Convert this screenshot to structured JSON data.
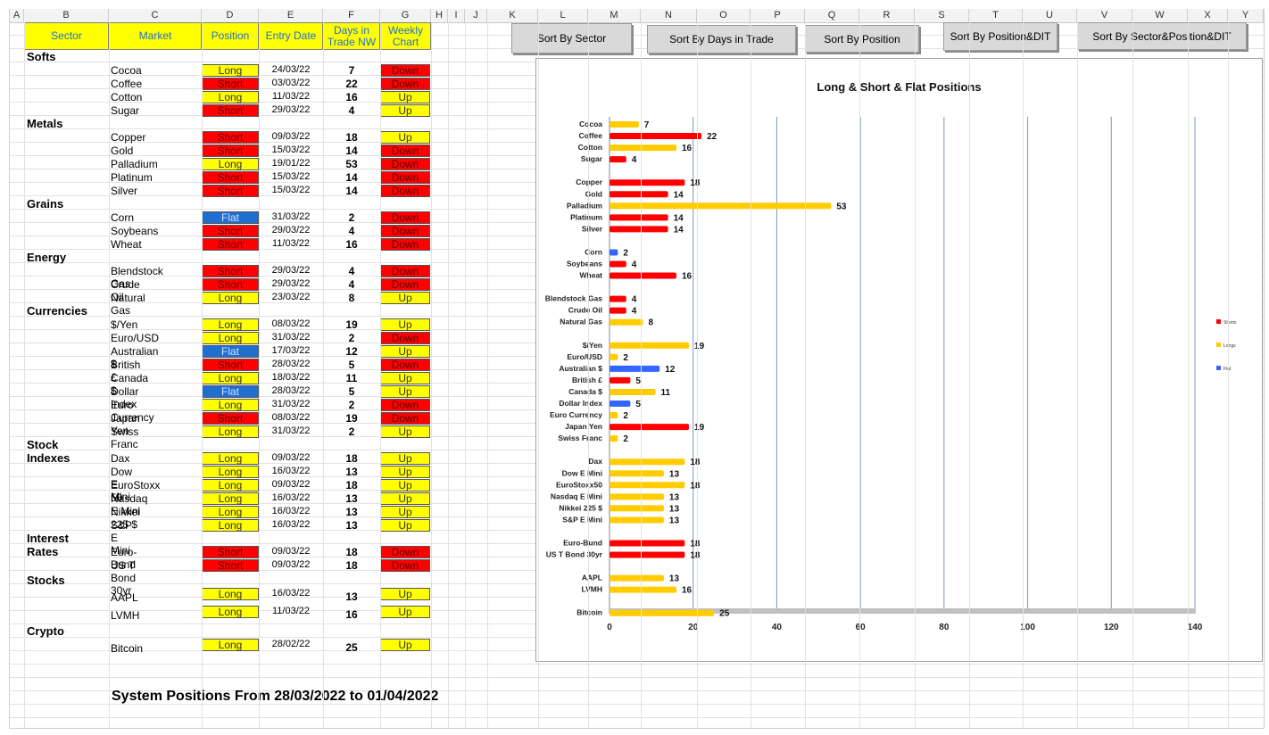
{
  "columns": [
    "A",
    "B",
    "C",
    "D",
    "E",
    "F",
    "G",
    "H",
    "I",
    "J",
    "K",
    "L",
    "M",
    "N",
    "O",
    "P",
    "Q",
    "R",
    "S",
    "T",
    "U",
    "V",
    "W",
    "X",
    "Y"
  ],
  "table_headers": {
    "sector": "Sector",
    "market": "Market",
    "position": "Position",
    "entry_date": "Entry Date",
    "days": "Days in Trade NW",
    "weekly": "Weekly Chart"
  },
  "buttons": {
    "sort_sector": "Sort By Sector",
    "sort_days": "Sort By Days in Trade",
    "sort_position": "Sort By Position",
    "sort_position_dit": "Sort By Position&DIT",
    "sort_sector_position_dit": "Sort By Sector&Position&DIT"
  },
  "sectors": [
    {
      "name": "Softs",
      "rows": [
        {
          "market": "Cocoa",
          "position": "Long",
          "entry": "24/03/22",
          "days": "7",
          "weekly": "Down"
        },
        {
          "market": "Coffee",
          "position": "Short",
          "entry": "03/03/22",
          "days": "22",
          "weekly": "Down"
        },
        {
          "market": "Cotton",
          "position": "Long",
          "entry": "11/03/22",
          "days": "16",
          "weekly": "Up"
        },
        {
          "market": "Sugar",
          "position": "Short",
          "entry": "29/03/22",
          "days": "4",
          "weekly": "Up"
        }
      ]
    },
    {
      "name": "Metals",
      "rows": [
        {
          "market": "Copper",
          "position": "Short",
          "entry": "09/03/22",
          "days": "18",
          "weekly": "Up"
        },
        {
          "market": "Gold",
          "position": "Short",
          "entry": "15/03/22",
          "days": "14",
          "weekly": "Down"
        },
        {
          "market": "Palladium",
          "position": "Long",
          "entry": "19/01/22",
          "days": "53",
          "weekly": "Down"
        },
        {
          "market": "Platinum",
          "position": "Short",
          "entry": "15/03/22",
          "days": "14",
          "weekly": "Down"
        },
        {
          "market": "Silver",
          "position": "Short",
          "entry": "15/03/22",
          "days": "14",
          "weekly": "Down"
        }
      ]
    },
    {
      "name": "Grains",
      "rows": [
        {
          "market": "Corn",
          "position": "Flat",
          "entry": "31/03/22",
          "days": "2",
          "weekly": "Down"
        },
        {
          "market": "Soybeans",
          "position": "Short",
          "entry": "29/03/22",
          "days": "4",
          "weekly": "Down"
        },
        {
          "market": "Wheat",
          "position": "Short",
          "entry": "11/03/22",
          "days": "16",
          "weekly": "Down"
        }
      ]
    },
    {
      "name": "Energy",
      "rows": [
        {
          "market": "Blendstock Gas",
          "position": "Short",
          "entry": "29/03/22",
          "days": "4",
          "weekly": "Down"
        },
        {
          "market": "Crude Oil",
          "position": "Short",
          "entry": "29/03/22",
          "days": "4",
          "weekly": "Down"
        },
        {
          "market": "Natural Gas",
          "position": "Long",
          "entry": "23/03/22",
          "days": "8",
          "weekly": "Up"
        }
      ]
    },
    {
      "name": "Currencies",
      "rows": [
        {
          "market": "$/Yen",
          "position": "Long",
          "entry": "08/03/22",
          "days": "19",
          "weekly": "Up"
        },
        {
          "market": "Euro/USD",
          "position": "Long",
          "entry": "31/03/22",
          "days": "2",
          "weekly": "Down"
        },
        {
          "market": "Australian $",
          "position": "Flat",
          "entry": "17/03/22",
          "days": "12",
          "weekly": "Up"
        },
        {
          "market": "British £",
          "position": "Short",
          "entry": "28/03/22",
          "days": "5",
          "weekly": "Down"
        },
        {
          "market": "Canada $",
          "position": "Long",
          "entry": "18/03/22",
          "days": "11",
          "weekly": "Up"
        },
        {
          "market": "Dollar Index",
          "position": "Flat",
          "entry": "28/03/22",
          "days": "5",
          "weekly": "Up"
        },
        {
          "market": "Euro Currency",
          "position": "Long",
          "entry": "31/03/22",
          "days": "2",
          "weekly": "Down"
        },
        {
          "market": "Japan Yen",
          "position": "Short",
          "entry": "08/03/22",
          "days": "19",
          "weekly": "Down"
        },
        {
          "market": "Swiss Franc",
          "position": "Long",
          "entry": "31/03/22",
          "days": "2",
          "weekly": "Up"
        }
      ]
    },
    {
      "name": "Stock Indexes",
      "rows": [
        {
          "market": "Dax",
          "position": "Long",
          "entry": "09/03/22",
          "days": "18",
          "weekly": "Up"
        },
        {
          "market": "Dow E Mini",
          "position": "Long",
          "entry": "16/03/22",
          "days": "13",
          "weekly": "Up"
        },
        {
          "market": "EuroStoxx 50",
          "position": "Long",
          "entry": "09/03/22",
          "days": "18",
          "weekly": "Up"
        },
        {
          "market": "Nasdaq E Mini",
          "position": "Long",
          "entry": "16/03/22",
          "days": "13",
          "weekly": "Up"
        },
        {
          "market": "Nikkei 225 $",
          "position": "Long",
          "entry": "16/03/22",
          "days": "13",
          "weekly": "Up"
        },
        {
          "market": "S&P E Mini",
          "position": "Long",
          "entry": "16/03/22",
          "days": "13",
          "weekly": "Up"
        }
      ]
    },
    {
      "name": "Interest Rates",
      "rows": [
        {
          "market": "Euro-Bund",
          "position": "Short",
          "entry": "09/03/22",
          "days": "18",
          "weekly": "Down"
        },
        {
          "market": "US T Bond 30yr",
          "position": "Short",
          "entry": "09/03/22",
          "days": "18",
          "weekly": "Down"
        }
      ]
    },
    {
      "name": "Stocks",
      "rows": [
        {
          "market": "AAPL",
          "position": "Long",
          "entry": "16/03/22",
          "days": "13",
          "weekly": "Up"
        },
        {
          "market": "LVMH",
          "position": "Long",
          "entry": "11/03/22",
          "days": "16",
          "weekly": "Up"
        }
      ]
    },
    {
      "name": "Crypto",
      "rows": [
        {
          "market": "Bitcoin",
          "position": "Long",
          "entry": "28/02/22",
          "days": "25",
          "weekly": "Up"
        }
      ]
    }
  ],
  "footer": "System Positions From  28/03/2022  to 01/04/2022",
  "colors": {
    "short": "#ff0000",
    "long": "#ffcc00",
    "flat": "#3366ff",
    "header_yellow": "#ffff00",
    "header_text": "#1f6fd1"
  },
  "chart_data": {
    "type": "bar",
    "orientation": "horizontal",
    "title": "Long & Short & Flat Positions",
    "xlim": [
      0,
      140
    ],
    "xticks": [
      0,
      20,
      40,
      60,
      80,
      100,
      120,
      140
    ],
    "legend": [
      "Shorts",
      "Longs",
      "Flat"
    ],
    "legend_position": "right",
    "groups": [
      [
        [
          "Cocoa",
          7,
          "Long"
        ],
        [
          "Coffee",
          22,
          "Short"
        ],
        [
          "Cotton",
          16,
          "Long"
        ],
        [
          "Sugar",
          4,
          "Short"
        ]
      ],
      [
        [
          "Copper",
          18,
          "Short"
        ],
        [
          "Gold",
          14,
          "Short"
        ],
        [
          "Palladium",
          53,
          "Long"
        ],
        [
          "Platinum",
          14,
          "Short"
        ],
        [
          "Silver",
          14,
          "Short"
        ]
      ],
      [
        [
          "Corn",
          2,
          "Flat"
        ],
        [
          "Soybeans",
          4,
          "Short"
        ],
        [
          "Wheat",
          16,
          "Short"
        ]
      ],
      [
        [
          "Blendstock Gas",
          4,
          "Short"
        ],
        [
          "Crude Oil",
          4,
          "Short"
        ],
        [
          "Natural Gas",
          8,
          "Long"
        ]
      ],
      [
        [
          "$/Yen",
          19,
          "Long"
        ],
        [
          "Euro/USD",
          2,
          "Long"
        ],
        [
          "Australian $",
          12,
          "Flat"
        ],
        [
          "British £",
          5,
          "Short"
        ],
        [
          "Canada $",
          11,
          "Long"
        ],
        [
          "Dollar Index",
          5,
          "Flat"
        ],
        [
          "Euro Currency",
          2,
          "Long"
        ],
        [
          "Japan Yen",
          19,
          "Short"
        ],
        [
          "Swiss Franc",
          2,
          "Long"
        ]
      ],
      [
        [
          "Dax",
          18,
          "Long"
        ],
        [
          "Dow E Mini",
          13,
          "Long"
        ],
        [
          "EuroStoxx50",
          18,
          "Long"
        ],
        [
          "Nasdaq E Mini",
          13,
          "Long"
        ],
        [
          "Nikkei 225 $",
          13,
          "Long"
        ],
        [
          "S&P E Mini",
          13,
          "Long"
        ]
      ],
      [
        [
          "Euro-Bund",
          18,
          "Short"
        ],
        [
          "US T Bond 30yr",
          18,
          "Short"
        ]
      ],
      [
        [
          "AAPL",
          13,
          "Long"
        ],
        [
          "LVMH",
          16,
          "Long"
        ]
      ],
      [
        [
          "Bitcoin",
          25,
          "Long"
        ]
      ]
    ]
  }
}
